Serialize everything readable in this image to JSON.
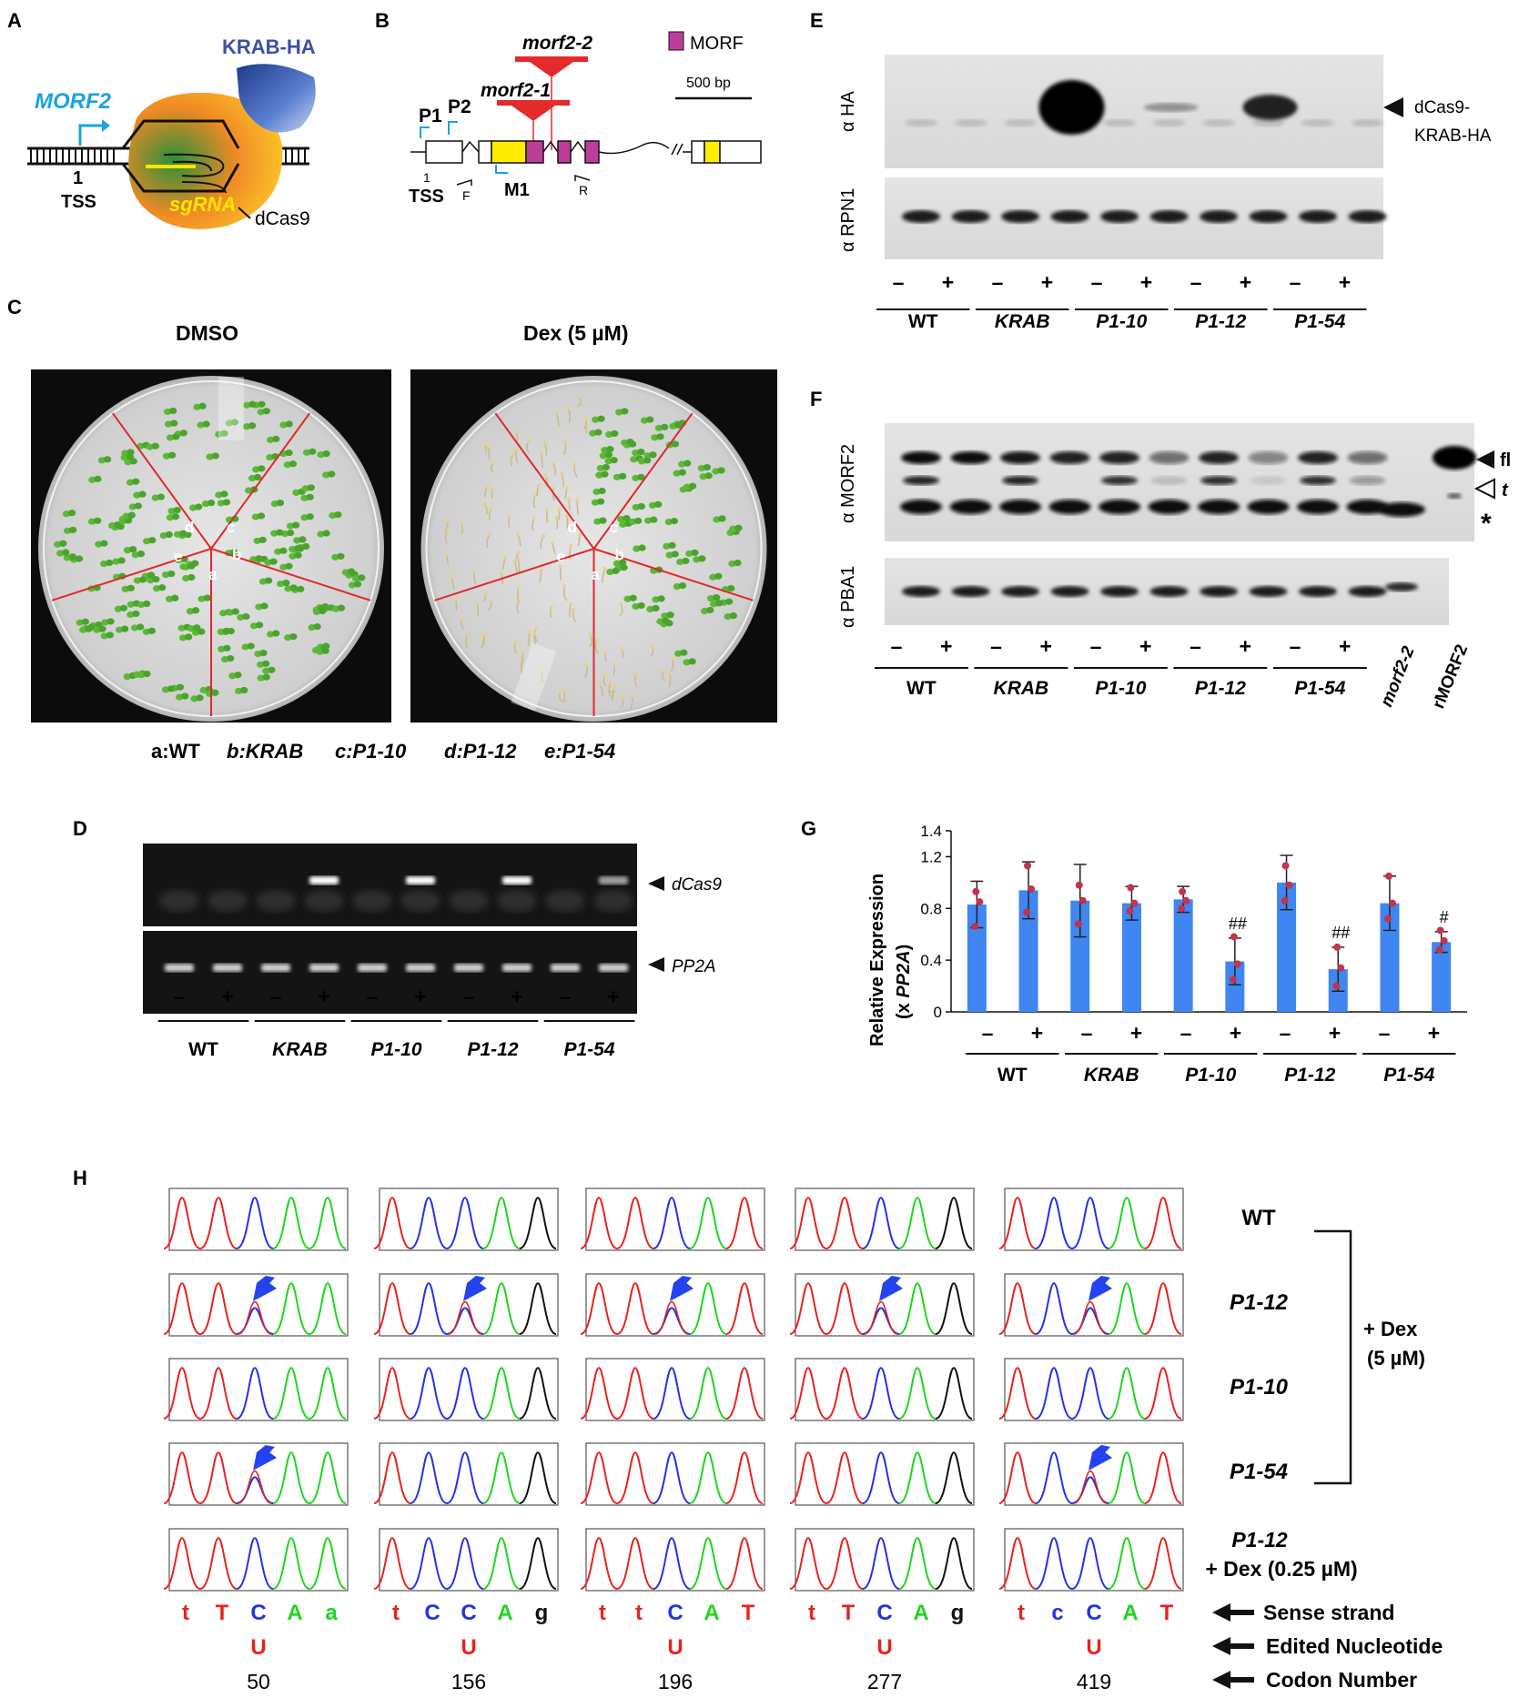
{
  "panels": {
    "A": {
      "label": "A",
      "krab": "KRAB-HA",
      "gene": "MORF2",
      "one": "1",
      "tss": "TSS",
      "sgrna": "sgRNA",
      "dcas9": "dCas9"
    },
    "B": {
      "label": "B",
      "morf2_2": "morf2-2",
      "morf2_1": "morf2-1",
      "legend": "MORF",
      "scale": "500 bp",
      "p1": "P1",
      "p2": "P2",
      "one": "1",
      "tss": "TSS",
      "f": "F",
      "m1": "M1",
      "r": "R"
    },
    "C": {
      "label": "C",
      "dmso": "DMSO",
      "dex": "Dex (5 µM)",
      "sectors": [
        "a",
        "b",
        "c",
        "d",
        "e"
      ],
      "legend": [
        "a:WT",
        "b:KRAB",
        "c:P1-10",
        "d:P1-12",
        "e:P1-54"
      ]
    },
    "D": {
      "label": "D",
      "band1": "dCas9",
      "band2": "PP2A"
    },
    "E": {
      "label": "E",
      "ab1": "α HA",
      "ab2": "α RPN1",
      "band": "dCas9-",
      "band2": "KRAB-HA"
    },
    "F": {
      "label": "F",
      "ab1": "α MORF2",
      "ab2": "α PBA1",
      "fl": "fl",
      "t": "t",
      "star": "*",
      "extra_lanes": [
        "morf2-2",
        "rMORF2"
      ]
    },
    "G": {
      "label": "G",
      "ylabel1": "Relative Expression",
      "ylabel2": "(x ",
      "ylabel3": "PP2A",
      "ylabel4": ")"
    },
    "H": {
      "label": "H",
      "rows": [
        "WT",
        "P1-12",
        "P1-10",
        "P1-54"
      ],
      "dex_label": "+ Dex",
      "dex_conc": "(5 µM)",
      "last_row1": "P1-12",
      "last_row2": "+ Dex (0.25 µM)",
      "sense": "Sense strand",
      "edited": "Edited Nucleotide",
      "codon": "Codon Number",
      "sequences": [
        {
          "bases": [
            "t",
            "T",
            "C",
            "A",
            "a"
          ],
          "codon": "50"
        },
        {
          "bases": [
            "t",
            "C",
            "C",
            "A",
            "g"
          ],
          "codon": "156"
        },
        {
          "bases": [
            "t",
            "t",
            "C",
            "A",
            "T"
          ],
          "codon": "196"
        },
        {
          "bases": [
            "t",
            "T",
            "C",
            "A",
            "g"
          ],
          "codon": "277"
        },
        {
          "bases": [
            "t",
            "c",
            "C",
            "A",
            "T"
          ],
          "codon": "419"
        }
      ],
      "edit_base": "U"
    }
  },
  "genotypes": [
    "WT",
    "KRAB",
    "P1-10",
    "P1-12",
    "P1-54"
  ],
  "treatment_minus": "–",
  "treatment_plus": "+",
  "chart_data": {
    "type": "bar",
    "ylabel": "Relative Expression (x PP2A)",
    "ylim": [
      0,
      1.4
    ],
    "yticks": [
      "0",
      "0.4",
      "0.8",
      "1.2",
      "1.4"
    ],
    "categories": [
      "WT –",
      "WT +",
      "KRAB –",
      "KRAB +",
      "P1-10 –",
      "P1-10 +",
      "P1-12 –",
      "P1-12 +",
      "P1-54 –",
      "P1-54 +"
    ],
    "values": [
      0.83,
      0.94,
      0.86,
      0.84,
      0.87,
      0.39,
      1.0,
      0.33,
      0.84,
      0.54
    ],
    "errors": [
      0.18,
      0.22,
      0.28,
      0.13,
      0.1,
      0.18,
      0.21,
      0.17,
      0.21,
      0.08
    ],
    "annotations": [
      "",
      "",
      "",
      "",
      "",
      "##",
      "",
      "##",
      "",
      "#"
    ],
    "points": [
      [
        0.93,
        0.85,
        0.66
      ],
      [
        1.13,
        0.95,
        0.77
      ],
      [
        0.98,
        0.86,
        0.68
      ],
      [
        0.96,
        0.84,
        0.78
      ],
      [
        0.93,
        0.86,
        0.8
      ],
      [
        0.58,
        0.37,
        0.25
      ],
      [
        1.13,
        0.98,
        0.86
      ],
      [
        0.5,
        0.34,
        0.2
      ],
      [
        1.05,
        0.84,
        0.72
      ],
      [
        0.63,
        0.55,
        0.48
      ]
    ],
    "bar_color": "#3f86f3",
    "point_color": "#c2334d"
  },
  "colors": {
    "trace_red": "#e8231d",
    "trace_blue": "#2034e8",
    "trace_green": "#1fd61f",
    "arrow_blue": "#2343f0",
    "magenta": "#bf3d9a",
    "yellow": "#ffec00",
    "plate_red": "#e02a2a",
    "cyan": "#1aa3e0"
  }
}
